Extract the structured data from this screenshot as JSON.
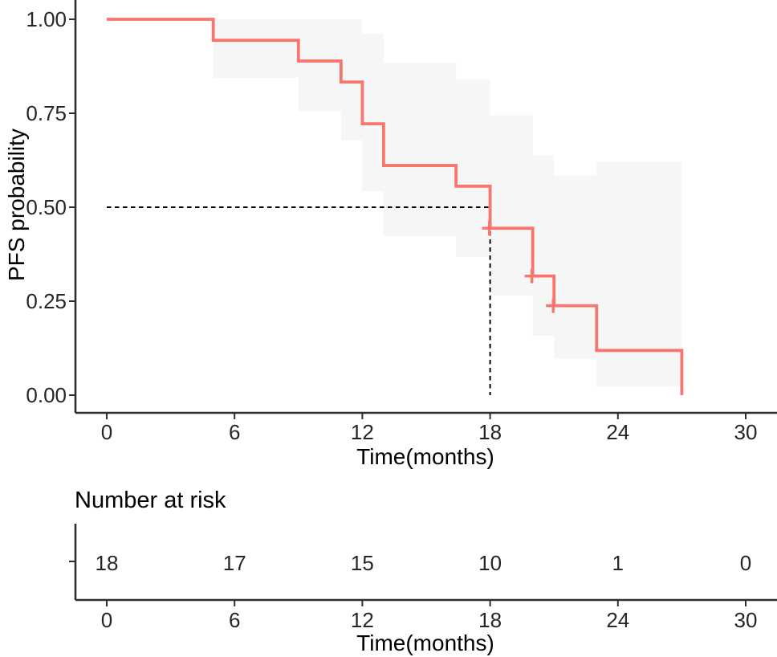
{
  "chart_data": {
    "type": "line",
    "subtype": "kaplan_meier_step",
    "title": "",
    "xlabel": "Time(months)",
    "ylabel": "PFS probability",
    "xlim": [
      0,
      30
    ],
    "ylim": [
      0,
      1
    ],
    "x_ticks": [
      0,
      6,
      12,
      18,
      24,
      30
    ],
    "y_ticks": [
      {
        "value": 0.0,
        "label": "0.00"
      },
      {
        "value": 0.25,
        "label": "0.25"
      },
      {
        "value": 0.5,
        "label": "0.50"
      },
      {
        "value": 0.75,
        "label": "0.75"
      },
      {
        "value": 1.0,
        "label": "1.00"
      }
    ],
    "grid": false,
    "legend_position": "none",
    "series": [
      {
        "name": "PFS",
        "color": "#f8766d",
        "steps": [
          {
            "time": 0,
            "survival": 1.0
          },
          {
            "time": 5,
            "survival": 0.944
          },
          {
            "time": 9,
            "survival": 0.889
          },
          {
            "time": 11,
            "survival": 0.833
          },
          {
            "time": 12,
            "survival": 0.722
          },
          {
            "time": 13,
            "survival": 0.611
          },
          {
            "time": 16.4,
            "survival": 0.556
          },
          {
            "time": 18,
            "survival": 0.444
          },
          {
            "time": 20,
            "survival": 0.317
          },
          {
            "time": 21,
            "survival": 0.238
          },
          {
            "time": 23,
            "survival": 0.119
          },
          {
            "time": 27,
            "survival": 0.0
          }
        ]
      }
    ],
    "censor_marks": [
      {
        "time": 18,
        "survival": 0.444
      },
      {
        "time": 20,
        "survival": 0.317
      },
      {
        "time": 21,
        "survival": 0.238
      }
    ],
    "confidence_band": {
      "fill": "#f5f6f6",
      "segments": [
        {
          "t0": 5,
          "t1": 9,
          "lower": 0.844,
          "upper": 1.0
        },
        {
          "t0": 9,
          "t1": 11,
          "lower": 0.755,
          "upper": 1.0
        },
        {
          "t0": 11,
          "t1": 12,
          "lower": 0.678,
          "upper": 1.0
        },
        {
          "t0": 12,
          "t1": 13,
          "lower": 0.542,
          "upper": 0.962
        },
        {
          "t0": 13,
          "t1": 16.4,
          "lower": 0.423,
          "upper": 0.884
        },
        {
          "t0": 16.4,
          "t1": 18,
          "lower": 0.368,
          "upper": 0.84
        },
        {
          "t0": 18,
          "t1": 20,
          "lower": 0.265,
          "upper": 0.745
        },
        {
          "t0": 20,
          "t1": 21,
          "lower": 0.158,
          "upper": 0.638
        },
        {
          "t0": 21,
          "t1": 23,
          "lower": 0.097,
          "upper": 0.584
        },
        {
          "t0": 23,
          "t1": 27,
          "lower": 0.023,
          "upper": 0.621
        }
      ]
    },
    "median_annotation": {
      "time": 18,
      "survival": 0.5,
      "line_style": "dashed",
      "color": "#000000"
    },
    "risk_table": {
      "title": "Number at risk",
      "xlabel": "Time(months)",
      "times": [
        0,
        6,
        12,
        18,
        24,
        30
      ],
      "counts": [
        "18",
        "17",
        "15",
        "10",
        "1",
        "0"
      ]
    }
  },
  "style": {
    "curve_color": "#f8766d",
    "band_fill": "#f5f6f6",
    "axis_color": "#2e2e2e",
    "tick_text_color": "#262626",
    "background": "#ffffff"
  }
}
